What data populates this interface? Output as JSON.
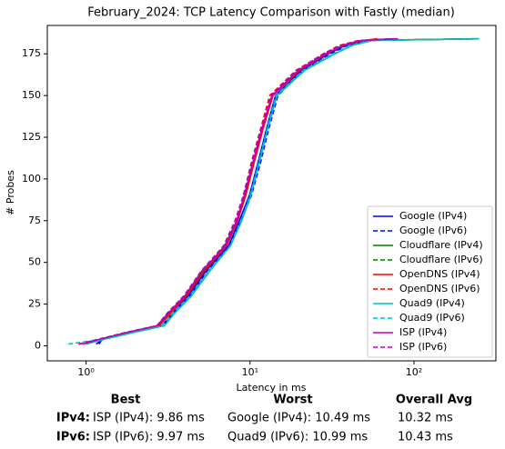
{
  "chart_data": {
    "type": "line",
    "title": "February_2024: TCP Latency Comparison with Fastly (median)",
    "xlabel": "Latency in ms",
    "ylabel": "# Probes",
    "xscale": "log",
    "xlim": [
      0.58,
      316
    ],
    "ylim": [
      -9,
      192
    ],
    "xticks": [
      {
        "value": 1,
        "label": "10⁰"
      },
      {
        "value": 10,
        "label": "10¹"
      },
      {
        "value": 100,
        "label": "10²"
      }
    ],
    "yticks": [
      0,
      25,
      50,
      75,
      100,
      125,
      150,
      175
    ],
    "legend": "lower right",
    "series": [
      {
        "name": "Google (IPv4)",
        "color": "#0000ff",
        "linestyle": "solid",
        "x": [
          1.2,
          1.25,
          1.85,
          2.9,
          3.4,
          4.2,
          5.4,
          7.4,
          8.6,
          9.9,
          11.2,
          12.6,
          14.3,
          20.5,
          30,
          38,
          50,
          75
        ],
        "values": [
          1,
          4,
          8,
          12,
          20,
          30,
          45,
          60,
          75,
          90,
          110,
          130,
          150,
          165,
          175,
          180,
          183,
          184
        ]
      },
      {
        "name": "Google (IPv6)",
        "color": "#0000ff",
        "linestyle": "dashed",
        "x": [
          1.15,
          1.28,
          1.9,
          2.95,
          3.45,
          4.3,
          5.5,
          7.5,
          8.8,
          10.2,
          11.6,
          13,
          14.8,
          21,
          31,
          39,
          52,
          240
        ],
        "values": [
          1,
          4,
          8,
          12,
          20,
          30,
          45,
          60,
          75,
          90,
          110,
          130,
          150,
          165,
          175,
          180,
          183,
          184
        ]
      },
      {
        "name": "Cloudflare (IPv4)",
        "color": "#008000",
        "linestyle": "solid",
        "x": [
          1.0,
          1.22,
          1.78,
          2.75,
          3.25,
          4.05,
          5.2,
          7.0,
          8.3,
          9.3,
          10.5,
          11.9,
          13.7,
          19.8,
          29,
          37,
          48,
          245
        ],
        "values": [
          1,
          4,
          8,
          12,
          20,
          30,
          45,
          60,
          75,
          90,
          110,
          130,
          150,
          165,
          175,
          180,
          183,
          184
        ]
      },
      {
        "name": "Cloudflare (IPv6)",
        "color": "#008000",
        "linestyle": "dashed",
        "x": [
          1.0,
          1.2,
          1.75,
          2.7,
          3.2,
          4.0,
          5.15,
          6.9,
          8.2,
          9.2,
          10.4,
          11.8,
          13.6,
          19.5,
          28.5,
          36,
          47,
          230
        ],
        "values": [
          1,
          4,
          8,
          12,
          20,
          30,
          45,
          60,
          75,
          90,
          110,
          130,
          150,
          165,
          175,
          180,
          183,
          184
        ]
      },
      {
        "name": "OpenDNS (IPv4)",
        "color": "#ff0000",
        "linestyle": "solid",
        "x": [
          0.95,
          1.24,
          1.8,
          2.8,
          3.3,
          4.1,
          5.3,
          7.2,
          8.4,
          9.4,
          10.6,
          12,
          13.8,
          20,
          29.5,
          37,
          49,
          60
        ],
        "values": [
          1,
          4,
          8,
          12,
          20,
          30,
          45,
          60,
          75,
          90,
          110,
          130,
          150,
          165,
          175,
          180,
          183,
          184
        ]
      },
      {
        "name": "OpenDNS (IPv6)",
        "color": "#ff0000",
        "linestyle": "dashed",
        "x": [
          0.9,
          1.21,
          1.75,
          2.7,
          3.2,
          4.0,
          5.1,
          7.0,
          8.2,
          9.1,
          10.2,
          11.6,
          13.2,
          19,
          28,
          35,
          46,
          240
        ],
        "values": [
          1,
          4,
          8,
          12,
          20,
          30,
          45,
          60,
          75,
          90,
          110,
          130,
          150,
          165,
          175,
          180,
          183,
          184
        ]
      },
      {
        "name": "Quad9 (IPv4)",
        "color": "#00bfbf",
        "linestyle": "solid",
        "x": [
          1.0,
          1.3,
          1.95,
          3.0,
          3.5,
          4.4,
          5.7,
          7.6,
          8.9,
          10.1,
          11.4,
          12.8,
          14.6,
          21.5,
          33,
          42,
          56,
          250
        ],
        "values": [
          1,
          4,
          8,
          12,
          20,
          30,
          45,
          60,
          75,
          90,
          110,
          130,
          150,
          165,
          175,
          180,
          183,
          184
        ]
      },
      {
        "name": "Quad9 (IPv6)",
        "color": "#00bfbf",
        "linestyle": "dashed",
        "x": [
          0.78,
          1.27,
          1.9,
          2.9,
          3.4,
          4.3,
          5.6,
          7.6,
          8.8,
          10,
          11.3,
          12.7,
          14.4,
          21,
          32,
          41,
          54,
          240
        ],
        "values": [
          1,
          4,
          8,
          12,
          20,
          30,
          45,
          60,
          75,
          90,
          110,
          130,
          150,
          165,
          175,
          180,
          183,
          184
        ]
      },
      {
        "name": "ISP (IPv4)",
        "color": "#bf00bf",
        "linestyle": "solid",
        "x": [
          0.95,
          1.22,
          1.78,
          2.7,
          3.2,
          4.0,
          5.1,
          7.1,
          8.3,
          9.2,
          10.4,
          11.8,
          13.6,
          19.6,
          29,
          37,
          48,
          80
        ],
        "values": [
          1,
          4,
          8,
          12,
          20,
          30,
          45,
          60,
          75,
          90,
          110,
          130,
          150,
          165,
          175,
          180,
          183,
          184
        ]
      },
      {
        "name": "ISP (IPv6)",
        "color": "#bf00bf",
        "linestyle": "dashed",
        "x": [
          0.9,
          1.2,
          1.75,
          2.7,
          3.15,
          3.95,
          5.05,
          6.9,
          8.1,
          9.1,
          10.3,
          11.7,
          13.4,
          19.3,
          28,
          36,
          47,
          70
        ],
        "values": [
          1,
          4,
          8,
          12,
          20,
          30,
          45,
          60,
          75,
          90,
          110,
          130,
          150,
          165,
          175,
          180,
          183,
          184
        ]
      }
    ]
  },
  "table": {
    "columns": [
      "Best",
      "Worst",
      "Overall Avg"
    ],
    "rows": [
      {
        "label": "IPv4:",
        "cells": [
          "ISP (IPv4): 9.86 ms",
          "Google (IPv4): 10.49 ms",
          "10.32 ms"
        ]
      },
      {
        "label": "IPv6:",
        "cells": [
          "ISP (IPv6): 9.97 ms",
          "Quad9 (IPv6): 10.99 ms",
          "10.43 ms"
        ]
      }
    ]
  }
}
